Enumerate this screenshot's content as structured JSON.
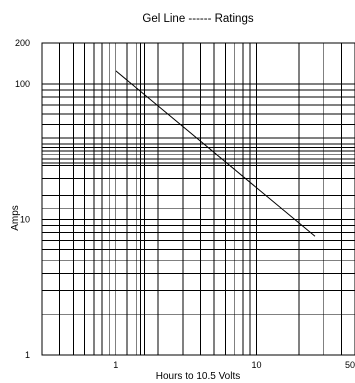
{
  "chart_data": {
    "type": "line",
    "title": "Gel Line ------ Ratings",
    "xlabel": "Hours to 10.5 Volts",
    "ylabel": "Amps",
    "x_scale": "log",
    "y_scale": "log",
    "xlim": [
      0.3,
      50
    ],
    "ylim": [
      1,
      200
    ],
    "grid": true,
    "x_ticks": [
      {
        "value": 1,
        "label": "1"
      },
      {
        "value": 10,
        "label": "10"
      },
      {
        "value": 50,
        "label": "50"
      }
    ],
    "y_ticks": [
      {
        "value": 1,
        "label": "1"
      },
      {
        "value": 10,
        "label": "10"
      },
      {
        "value": 100,
        "label": "100"
      },
      {
        "value": 200,
        "label": "200"
      }
    ],
    "x_gridlines": [
      0.3,
      0.4,
      0.5,
      0.6,
      0.7,
      0.8,
      0.9,
      1,
      1.2,
      1.4,
      1.5,
      1.6,
      2,
      3,
      4,
      5,
      6,
      7,
      8,
      9,
      10,
      20,
      30,
      40,
      50
    ],
    "y_gridlines": [
      1,
      2,
      3,
      4,
      5,
      6,
      7,
      8,
      9,
      10,
      12,
      15,
      20,
      25,
      26,
      28,
      30,
      32,
      34,
      36,
      40,
      50,
      60,
      70,
      80,
      90,
      100,
      200
    ],
    "series": [
      {
        "x": [
          1.0,
          26.0
        ],
        "y": [
          125,
          7.5
        ]
      }
    ]
  }
}
